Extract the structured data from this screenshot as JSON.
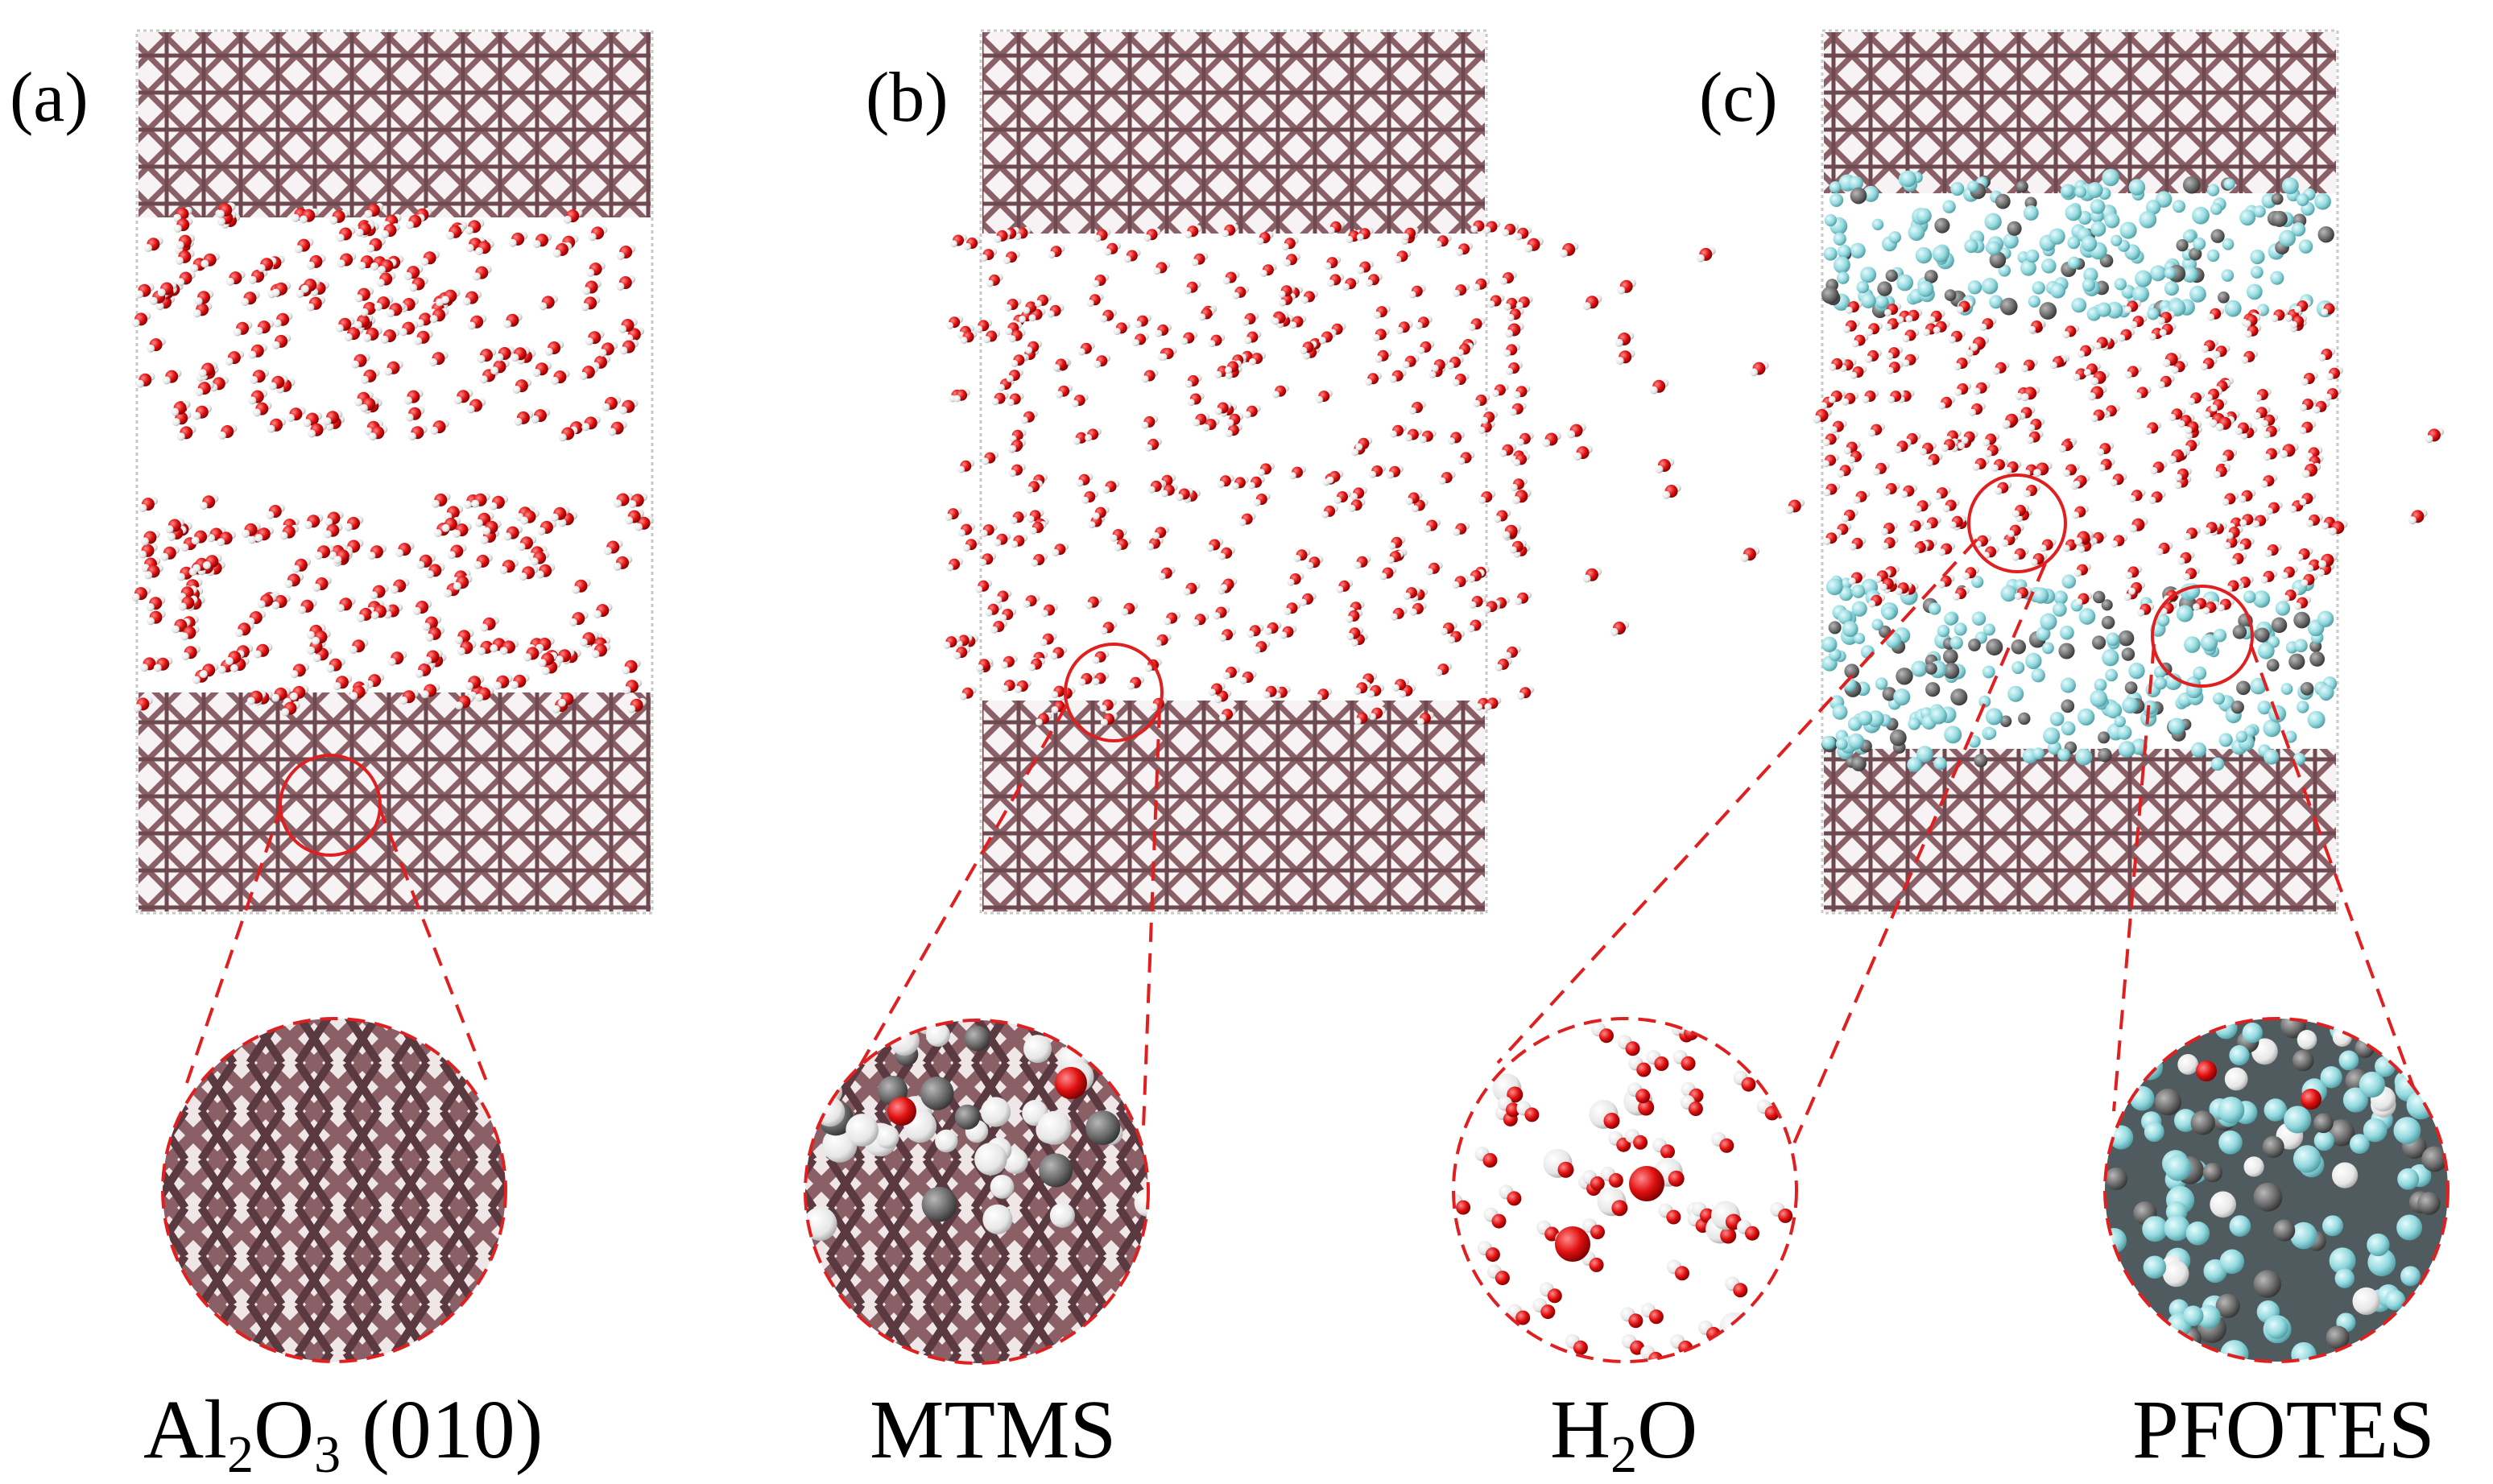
{
  "panels": [
    {
      "id": "a",
      "label": "(a)",
      "system": "Al2O3 (010) slab with water",
      "components": [
        "Al2O3",
        "H2O"
      ]
    },
    {
      "id": "b",
      "label": "(b)",
      "system": "MTMS-coated slab with water",
      "components": [
        "Al2O3",
        "MTMS",
        "H2O"
      ]
    },
    {
      "id": "c",
      "label": "(c)",
      "system": "PFOTES-coated slab with water",
      "components": [
        "Al2O3",
        "PFOTES",
        "H2O"
      ]
    }
  ],
  "zooms": [
    {
      "id": "al2o3",
      "caption_main": "Al",
      "caption_sub1": "2",
      "caption_mid": "O",
      "caption_sub2": "3",
      "caption_tail": " (010)",
      "content": "substrate"
    },
    {
      "id": "mtms",
      "caption": "MTMS",
      "content": "mtms"
    },
    {
      "id": "h2o",
      "caption_main": "H",
      "caption_sub": "2",
      "caption_tail": "O",
      "content": "water"
    },
    {
      "id": "pfotes",
      "caption": "PFOTES",
      "content": "pfotes"
    }
  ],
  "colors": {
    "substrate": "#8a5f66",
    "substrate_dark": "#5a3a40",
    "oxygen": "#e01010",
    "hydrogen": "#f2f2f2",
    "carbon": "#6b6b6b",
    "fluorine": "#8fd8de",
    "callout": "#e02020",
    "box": "#c8c8c8"
  }
}
